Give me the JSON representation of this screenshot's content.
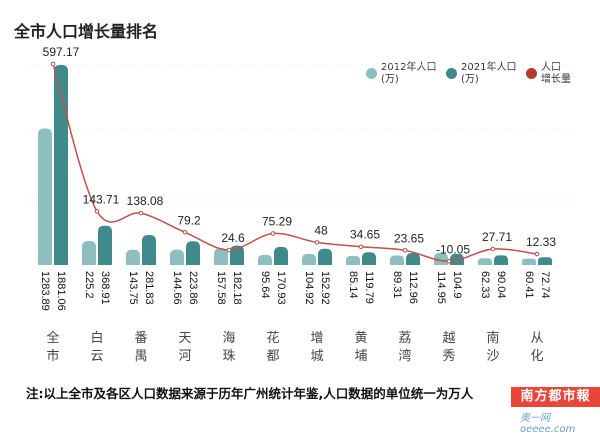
{
  "title": "全市人口增长量排名",
  "legend": [
    {
      "label": "2012年人口\n(万)",
      "color": "#88c0c4"
    },
    {
      "label": "2021年人口\n(万)",
      "color": "#3f8a8a"
    },
    {
      "label": "人口\n增长量",
      "color": "#c0392b"
    }
  ],
  "chart_data": {
    "type": "bar",
    "title": "全市人口增长量排名",
    "categories": [
      "全市",
      "白云",
      "番禺",
      "天河",
      "海珠",
      "花都",
      "增城",
      "黄埔",
      "荔湾",
      "越秀",
      "南沙",
      "从化"
    ],
    "series": [
      {
        "name": "2012年人口(万)",
        "type": "bar",
        "color": "#8dbfc0",
        "values": [
          1283.89,
          225.2,
          143.75,
          144.66,
          157.58,
          95.64,
          104.92,
          85.14,
          89.31,
          114.95,
          62.33,
          60.41
        ]
      },
      {
        "name": "2021年人口(万)",
        "type": "bar",
        "color": "#3f8a8a",
        "values": [
          1881.06,
          368.91,
          281.83,
          223.86,
          182.18,
          170.93,
          152.92,
          119.79,
          112.96,
          104.9,
          90.04,
          72.74
        ]
      },
      {
        "name": "人口增长量",
        "type": "line",
        "color": "#c0504d",
        "values": [
          597.17,
          143.71,
          138.08,
          79.2,
          24.6,
          75.29,
          48,
          34.65,
          23.65,
          -10.05,
          27.71,
          12.33
        ]
      }
    ],
    "value_labels_2012": [
      "1283.89",
      "225.2",
      "143.75",
      "144.66",
      "157.58",
      "95.64",
      "104.92",
      "85.14",
      "89.31",
      "114.95",
      "62.33",
      "60.41"
    ],
    "value_labels_2021": [
      "1881.06",
      "368.91",
      "281.83",
      "223.86",
      "182.18",
      "170.93",
      "152.92",
      "119.79",
      "112.96",
      "104.9",
      "90.04",
      "72.74"
    ],
    "growth_labels": [
      "597.17",
      "143.71",
      "138.08",
      "79.2",
      "24.6",
      "75.29",
      "48",
      "34.65",
      "23.65",
      "-10.05",
      "27.71",
      "12.33"
    ],
    "grid": true,
    "legend_position": "top-right"
  },
  "note": "注:以上全市及各区人口数据来源于历年广州统计年鉴,人口数据的单位统一为万人",
  "logo": {
    "text": "南方都市報",
    "sub": "奥一网 oeeee.com"
  }
}
